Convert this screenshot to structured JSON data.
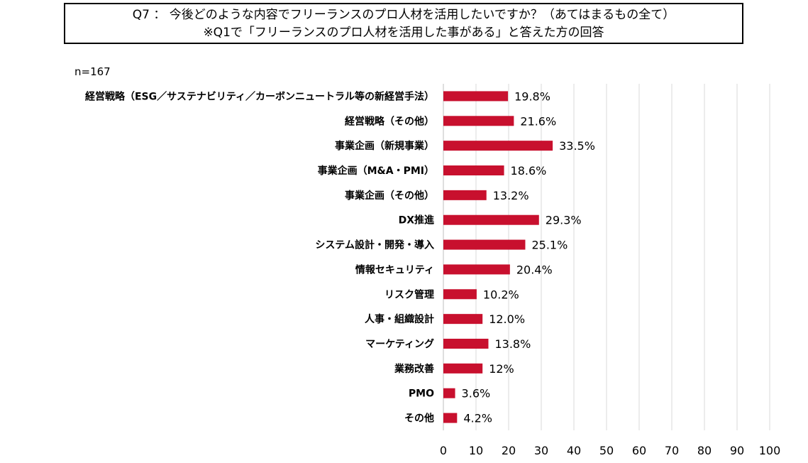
{
  "title": {
    "line1": "Q7 ： 今後どのような内容でフリーランスのプロ人材を活用したいですか？（あてはまるもの全て）",
    "line2": "※Q1で「フリーランスのプロ人材を活用した事がある」と答えた方の回答"
  },
  "sample_size": "n=167",
  "colors": {
    "bar": "#c8102e",
    "grid": "#d9d9d9"
  },
  "chart_data": {
    "type": "bar",
    "orientation": "horizontal",
    "categories": [
      "経営戦略（ESG／サステナビリティ／カーボンニュートラル等の新経営手法）",
      "経営戦略（その他）",
      "事業企画（新規事業）",
      "事業企画（M&A・PMI）",
      "事業企画（その他）",
      "DX推進",
      "システム設計・開発・導入",
      "情報セキュリティ",
      "リスク管理",
      "人事・組織設計",
      "マーケティング",
      "業務改善",
      "PMO",
      "その他"
    ],
    "values": [
      19.8,
      21.6,
      33.5,
      18.6,
      13.2,
      29.3,
      25.1,
      20.4,
      10.2,
      12.0,
      13.8,
      12,
      3.6,
      4.2
    ],
    "value_labels": [
      "19.8%",
      "21.6%",
      "33.5%",
      "18.6%",
      "13.2%",
      "29.3%",
      "25.1%",
      "20.4%",
      "10.2%",
      "12.0%",
      "13.8%",
      "12%",
      "3.6%",
      "4.2%"
    ],
    "xlim": [
      0,
      100
    ],
    "xticks": [
      "0",
      "10",
      "20",
      "30",
      "40",
      "50",
      "60",
      "70",
      "80",
      "90",
      "100"
    ],
    "grid": true
  }
}
